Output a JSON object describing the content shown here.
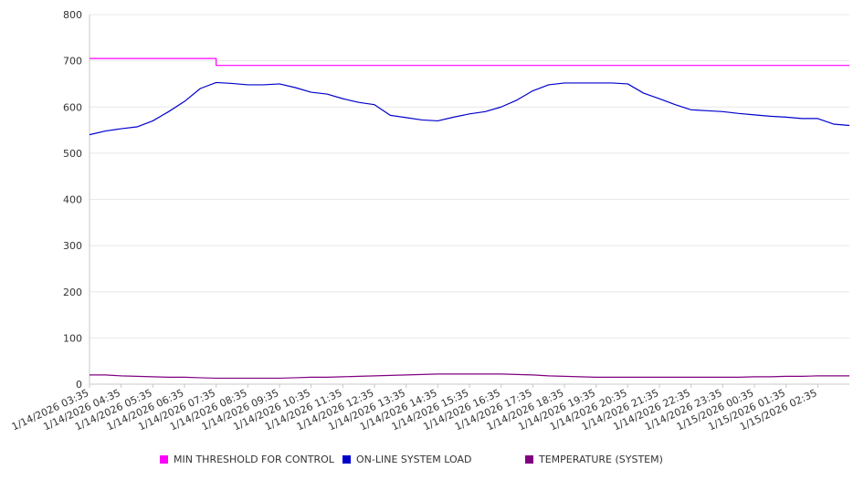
{
  "chart_data": {
    "type": "line",
    "title": "",
    "xlabel": "",
    "ylabel": "",
    "ylim": [
      0,
      800
    ],
    "yticks": [
      0,
      100,
      200,
      300,
      400,
      500,
      600,
      700,
      800
    ],
    "grid": true,
    "legend_position": "bottom",
    "x_tick_labels": [
      "1/14/2026 03:35",
      "1/14/2026 04:35",
      "1/14/2026 05:35",
      "1/14/2026 06:35",
      "1/14/2026 07:35",
      "1/14/2026 08:35",
      "1/14/2026 09:35",
      "1/14/2026 10:35",
      "1/14/2026 11:35",
      "1/14/2026 12:35",
      "1/14/2026 13:35",
      "1/14/2026 14:35",
      "1/14/2026 15:35",
      "1/14/2026 16:35",
      "1/14/2026 17:35",
      "1/14/2026 18:35",
      "1/14/2026 19:35",
      "1/14/2026 20:35",
      "1/14/2026 21:35",
      "1/14/2026 22:35",
      "1/14/2026 23:35",
      "1/15/2026 00:35",
      "1/15/2026 01:35",
      "1/15/2026 02:35"
    ],
    "x_hours": [
      0,
      0.5,
      1,
      1.5,
      2,
      2.5,
      3,
      3.5,
      4,
      4.5,
      5,
      5.5,
      6,
      6.5,
      7,
      7.5,
      8,
      8.5,
      9,
      9.5,
      10,
      10.5,
      11,
      11.5,
      12,
      12.5,
      13,
      13.5,
      14,
      14.5,
      15,
      15.5,
      16,
      16.5,
      17,
      17.5,
      18,
      18.5,
      19,
      19.5,
      20,
      20.5,
      21,
      21.5,
      22,
      22.5,
      23,
      23.5,
      24
    ],
    "series": [
      {
        "name": "MIN THRESHOLD FOR CONTROL",
        "color": "#ff00ff",
        "values": [
          705,
          705,
          705,
          705,
          705,
          705,
          705,
          705,
          690,
          690,
          690,
          690,
          690,
          690,
          690,
          690,
          690,
          690,
          690,
          690,
          690,
          690,
          690,
          690,
          690,
          690,
          690,
          690,
          690,
          690,
          690,
          690,
          690,
          690,
          690,
          690,
          690,
          690,
          690,
          690,
          690,
          690,
          690,
          690,
          690,
          690,
          690,
          690,
          690
        ]
      },
      {
        "name": "ON-LINE SYSTEM LOAD",
        "color": "#0000cc",
        "values": [
          540,
          548,
          553,
          557,
          570,
          590,
          612,
          640,
          653,
          651,
          648,
          648,
          650,
          642,
          632,
          628,
          618,
          610,
          605,
          582,
          577,
          572,
          570,
          578,
          585,
          590,
          600,
          615,
          635,
          648,
          652,
          652,
          652,
          652,
          650,
          630,
          618,
          605,
          594,
          592,
          590,
          586,
          583,
          580,
          578,
          575,
          575,
          563,
          560
        ]
      },
      {
        "name": "TEMPERATURE (SYSTEM)",
        "color": "#800080",
        "values": [
          20,
          20,
          18,
          17,
          16,
          15,
          15,
          14,
          13,
          13,
          13,
          13,
          13,
          14,
          15,
          15,
          16,
          17,
          18,
          19,
          20,
          21,
          22,
          22,
          22,
          22,
          22,
          21,
          20,
          18,
          17,
          16,
          15,
          15,
          15,
          15,
          15,
          15,
          15,
          15,
          15,
          15,
          16,
          16,
          17,
          17,
          18,
          18,
          18
        ]
      }
    ]
  }
}
